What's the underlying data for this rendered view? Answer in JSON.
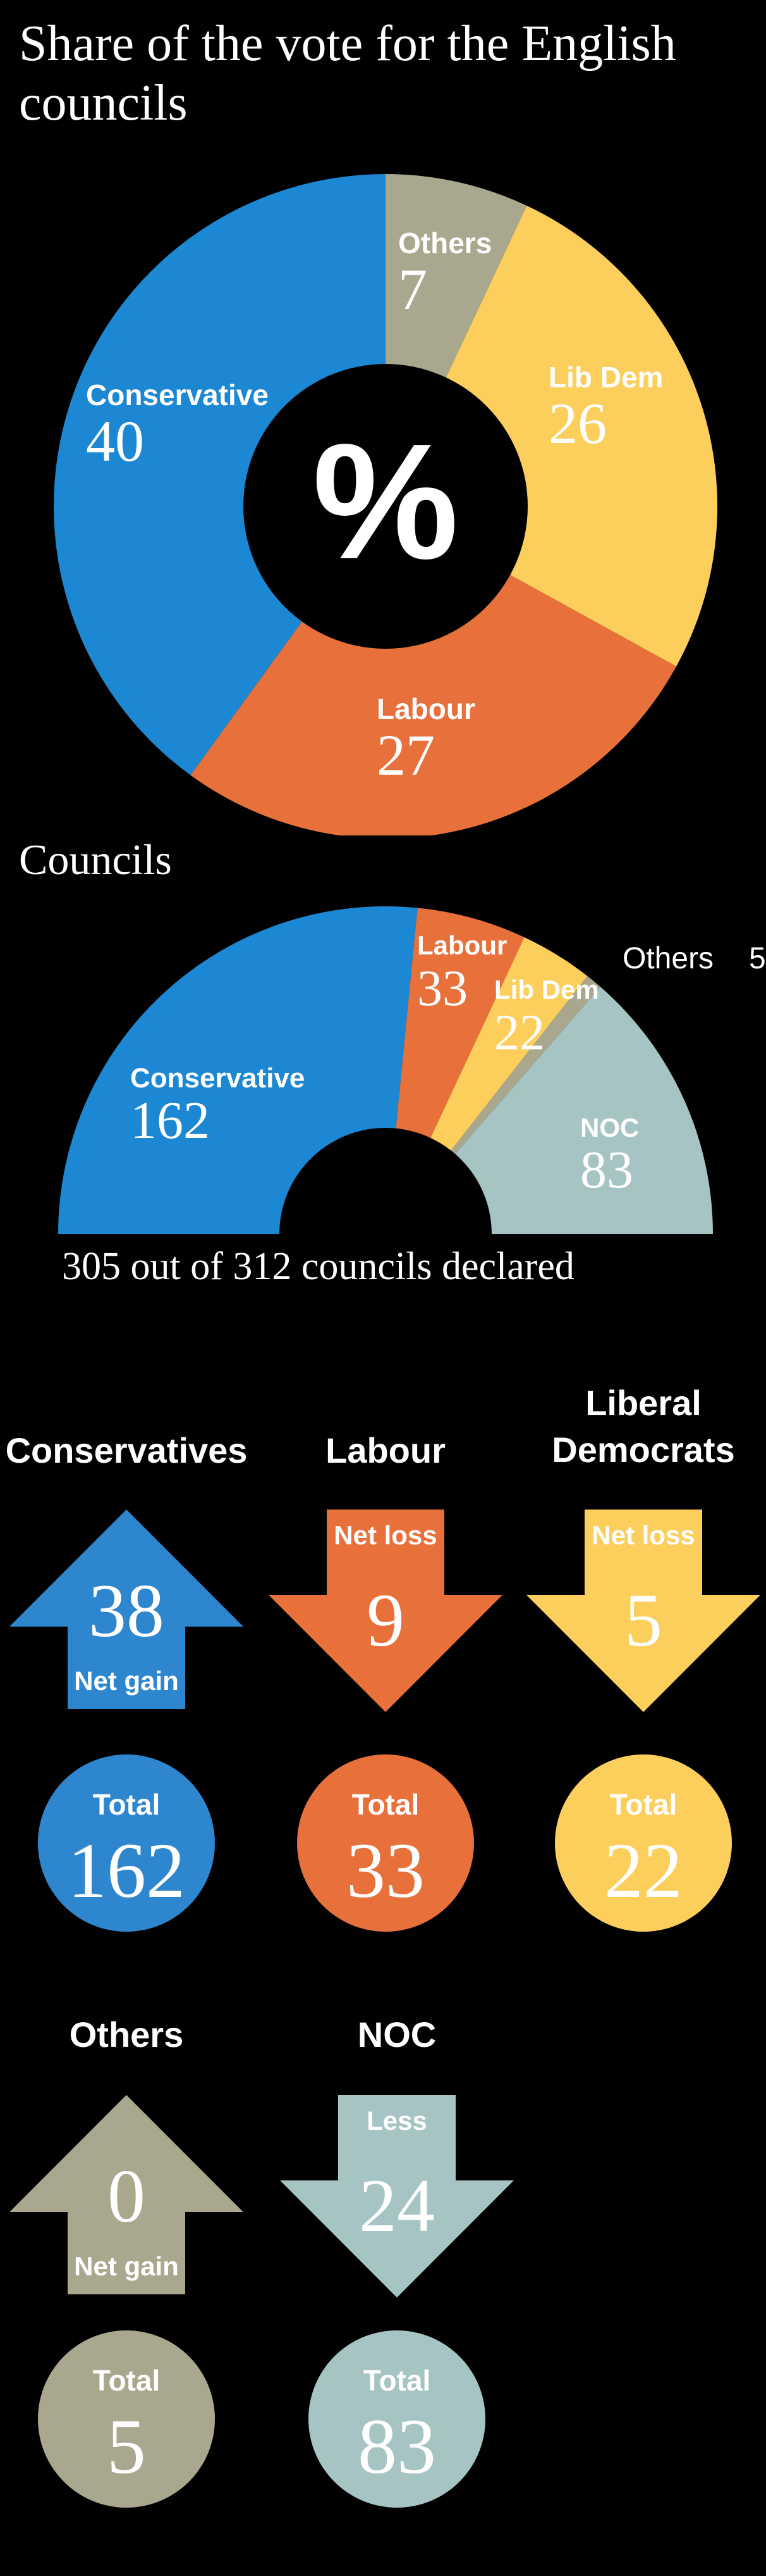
{
  "colors": {
    "conservative": "#1c87d2",
    "labour": "#e8703a",
    "libdem": "#fccf5c",
    "others": "#a9a88f",
    "noc": "#a6c4c3",
    "background": "#000000"
  },
  "title": "Share of the vote for the English councils",
  "donut_center": "%",
  "councils_title": "Councils",
  "declared_text": "305 out of 312 councils declared",
  "chart_data": [
    {
      "type": "pie",
      "title": "Share of the vote for the English councils",
      "categories": [
        "Others",
        "Lib Dem",
        "Labour",
        "Conservative"
      ],
      "values": [
        7,
        26,
        27,
        40
      ],
      "colors": [
        "#a9a88f",
        "#fccf5c",
        "#e8703a",
        "#1c87d2"
      ]
    },
    {
      "type": "pie",
      "title": "Councils",
      "categories": [
        "Conservative",
        "Labour",
        "Lib Dem",
        "Others",
        "NOC"
      ],
      "values": [
        162,
        33,
        22,
        5,
        83
      ],
      "colors": [
        "#1c87d2",
        "#e8703a",
        "#fccf5c",
        "#a9a88f",
        "#a6c4c3"
      ]
    }
  ],
  "party_results": [
    {
      "name": "Conservatives",
      "change_label": "Net gain",
      "change": 38,
      "direction": "up",
      "total_label": "Total",
      "total": 162,
      "color": "#2e86cf"
    },
    {
      "name": "Labour",
      "change_label": "Net loss",
      "change": 9,
      "direction": "down",
      "total_label": "Total",
      "total": 33,
      "color": "#e8703a"
    },
    {
      "name": "Liberal Democrats",
      "change_label": "Net loss",
      "change": 5,
      "direction": "down",
      "total_label": "Total",
      "total": 22,
      "color": "#fccf5c"
    },
    {
      "name": "Others",
      "change_label": "Net gain",
      "change": 0,
      "direction": "up",
      "total_label": "Total",
      "total": 5,
      "color": "#a9a88f"
    },
    {
      "name": "NOC",
      "change_label": "Less",
      "change": 24,
      "direction": "down",
      "total_label": "Total",
      "total": 83,
      "color": "#a6c4c3"
    }
  ]
}
